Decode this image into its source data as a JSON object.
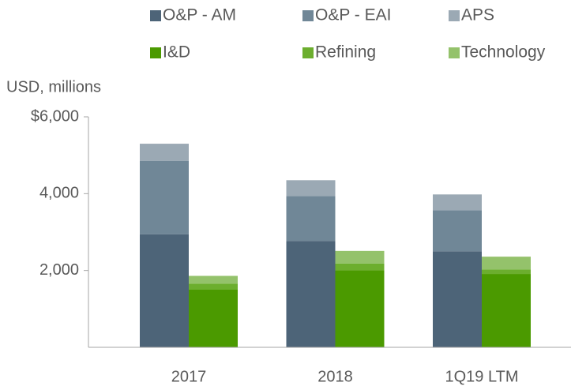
{
  "chart_data": {
    "type": "stacked_grouped_bar",
    "y_axis_label": "USD, millions",
    "categories": [
      "2017",
      "2018",
      "1Q19  LTM"
    ],
    "ylim": [
      0,
      6000
    ],
    "yticks": [
      {
        "value": 2000,
        "label": "2,000"
      },
      {
        "value": 4000,
        "label": "4,000"
      },
      {
        "value": 6000,
        "label": "$6,000"
      }
    ],
    "series": [
      {
        "name": "O&P - AM",
        "color": "#4d6478",
        "stack": 0,
        "values": [
          2940,
          2770,
          2500
        ]
      },
      {
        "name": "O&P - EAI",
        "color": "#708797",
        "stack": 0,
        "values": [
          1910,
          1170,
          1070
        ]
      },
      {
        "name": "APS",
        "color": "#9ba9b4",
        "stack": 0,
        "values": [
          450,
          410,
          410
        ]
      },
      {
        "name": "I&D",
        "color": "#4b9a00",
        "stack": 1,
        "values": [
          1500,
          2010,
          1910
        ]
      },
      {
        "name": "Refining",
        "color": "#6cae2e",
        "stack": 1,
        "values": [
          160,
          170,
          120
        ]
      },
      {
        "name": "Technology",
        "color": "#94c26b",
        "stack": 1,
        "values": [
          200,
          330,
          330
        ]
      }
    ]
  }
}
